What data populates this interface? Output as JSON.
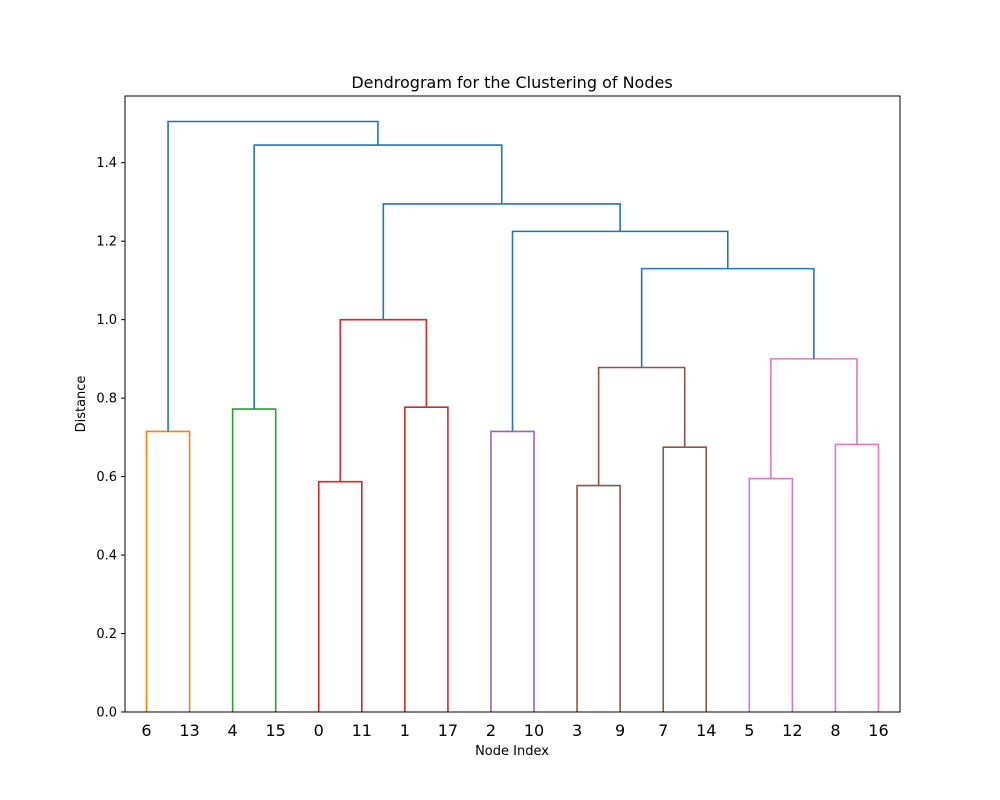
{
  "chart_data": {
    "type": "dendrogram",
    "title": "Dendrogram for the Clustering of Nodes",
    "xlabel": "Node Index",
    "ylabel": "Distance",
    "ylim": [
      0,
      1.57
    ],
    "yticks": [
      "0.0",
      "0.2",
      "0.4",
      "0.6",
      "0.8",
      "1.0",
      "1.2",
      "1.4"
    ],
    "leaves": [
      "6",
      "13",
      "4",
      "15",
      "0",
      "11",
      "1",
      "17",
      "2",
      "10",
      "3",
      "9",
      "7",
      "14",
      "5",
      "12",
      "8",
      "16"
    ],
    "colors": {
      "orange": "#ff7f0e",
      "green": "#2ca02c",
      "red": "#d62728",
      "purple": "#9467bd",
      "brown": "#8c564b",
      "pink": "#e377c2",
      "blue": "#1f77b4"
    },
    "links": [
      {
        "left": "L0",
        "right": "L1",
        "height": 0.715,
        "color": "orange"
      },
      {
        "left": "L2",
        "right": "L3",
        "height": 0.772,
        "color": "green"
      },
      {
        "left": "L4",
        "right": "L5",
        "height": 0.587,
        "color": "red"
      },
      {
        "left": "L6",
        "right": "L7",
        "height": 0.777,
        "color": "red"
      },
      {
        "left": "N2",
        "right": "N3",
        "height": 1.0,
        "color": "red"
      },
      {
        "left": "L8",
        "right": "L9",
        "height": 0.715,
        "color": "purple"
      },
      {
        "left": "L10",
        "right": "L11",
        "height": 0.577,
        "color": "brown"
      },
      {
        "left": "L12",
        "right": "L13",
        "height": 0.675,
        "color": "brown"
      },
      {
        "left": "N6",
        "right": "N7",
        "height": 0.878,
        "color": "brown"
      },
      {
        "left": "L14",
        "right": "L15",
        "height": 0.595,
        "color": "pink"
      },
      {
        "left": "L16",
        "right": "L17",
        "height": 0.682,
        "color": "pink"
      },
      {
        "left": "N9",
        "right": "N10",
        "height": 0.9,
        "color": "pink"
      },
      {
        "left": "N8",
        "right": "N11",
        "height": 1.13,
        "color": "blue"
      },
      {
        "left": "N5",
        "right": "N12",
        "height": 1.225,
        "color": "blue"
      },
      {
        "left": "N4",
        "right": "N13",
        "height": 1.295,
        "color": "blue"
      },
      {
        "left": "N1",
        "right": "N14",
        "height": 1.445,
        "color": "blue"
      },
      {
        "left": "N0",
        "right": "N15",
        "height": 1.505,
        "color": "blue"
      }
    ]
  }
}
